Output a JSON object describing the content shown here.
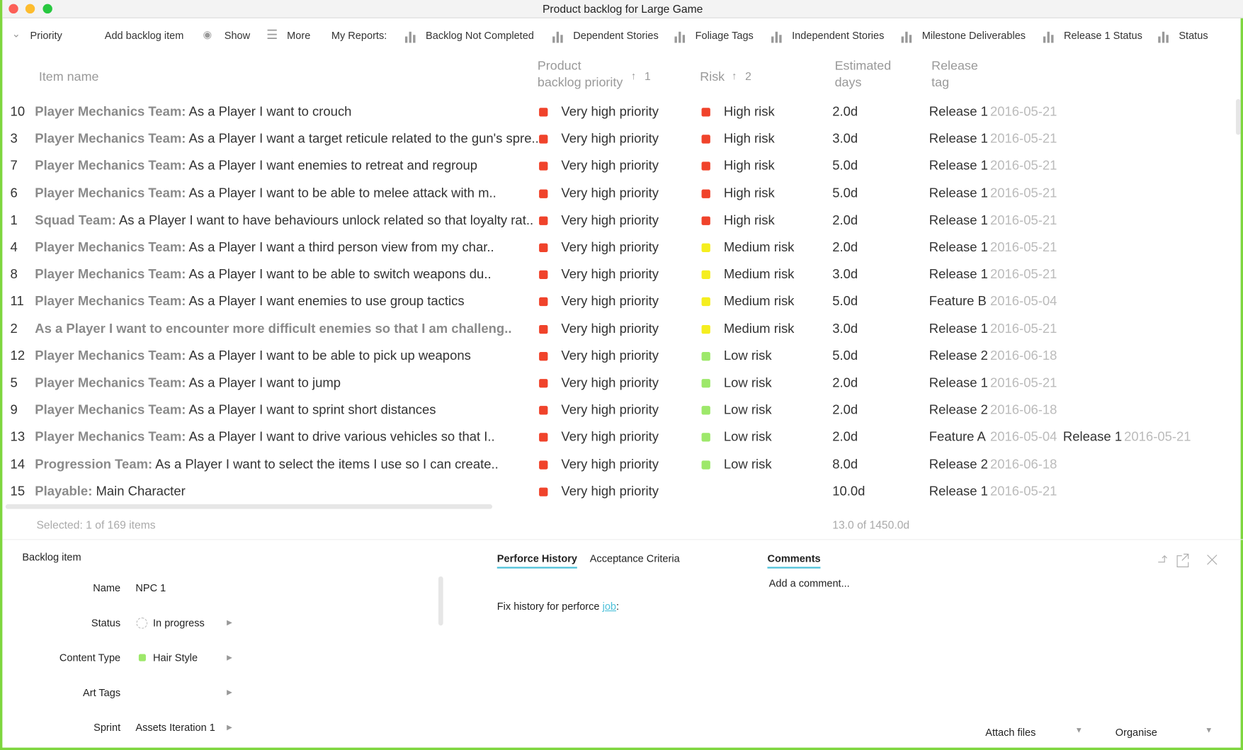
{
  "window_title": "Product backlog for Large Game",
  "toolbar": {
    "items": [
      "Priority",
      "Add backlog item",
      "Show",
      "More"
    ],
    "reports_label": "My Reports:",
    "reports": [
      "Backlog Not Completed",
      "Dependent Stories",
      "Foliage Tags",
      "Independent Stories",
      "Milestone Deliverables",
      "Release 1 Status",
      "Status"
    ]
  },
  "table": {
    "headers": [
      {
        "lines": [
          "Item name"
        ]
      },
      {
        "lines": [
          "Product",
          "backlog priority"
        ],
        "sort": "1"
      },
      {
        "lines": [
          "Risk"
        ],
        "sort": "2"
      },
      {
        "lines": [
          "Estimated",
          "days"
        ]
      },
      {
        "lines": [
          "Release",
          "tag"
        ]
      }
    ],
    "rows": [
      {
        "id": "10",
        "team": "Player Mechanics Team:",
        "text": "As a Player I want to crouch",
        "priority": "Very high priority",
        "priority_color": "#f0432b",
        "risk": "High risk",
        "risk_color": "#f0432b",
        "days": "2.0d",
        "releases": [
          {
            "tag": "Release 1",
            "date": "2016-05-21"
          }
        ]
      },
      {
        "id": "3",
        "team": "Player Mechanics Team:",
        "text": "As a Player I want a target reticule related to the gun's spre..",
        "priority": "Very high priority",
        "priority_color": "#f0432b",
        "risk": "High risk",
        "risk_color": "#f0432b",
        "days": "3.0d",
        "releases": [
          {
            "tag": "Release 1",
            "date": "2016-05-21"
          }
        ]
      },
      {
        "id": "7",
        "team": "Player Mechanics Team:",
        "text": "As a Player I want enemies to retreat and regroup",
        "priority": "Very high priority",
        "priority_color": "#f0432b",
        "risk": "High risk",
        "risk_color": "#f0432b",
        "days": "5.0d",
        "releases": [
          {
            "tag": "Release 1",
            "date": "2016-05-21"
          }
        ]
      },
      {
        "id": "6",
        "team": "Player Mechanics Team:",
        "text": "As a Player I want to be able to melee attack with m..",
        "priority": "Very high priority",
        "priority_color": "#f0432b",
        "risk": "High risk",
        "risk_color": "#f0432b",
        "days": "5.0d",
        "releases": [
          {
            "tag": "Release 1",
            "date": "2016-05-21"
          }
        ]
      },
      {
        "id": "1",
        "team": "Squad Team:",
        "text": "As a Player I want to have behaviours unlock related so that loyalty rat..",
        "priority": "Very high priority",
        "priority_color": "#f0432b",
        "risk": "High risk",
        "risk_color": "#f0432b",
        "days": "2.0d",
        "releases": [
          {
            "tag": "Release 1",
            "date": "2016-05-21"
          }
        ]
      },
      {
        "id": "4",
        "team": "Player Mechanics Team:",
        "text": "As a Player I want a third person view from my char..",
        "priority": "Very high priority",
        "priority_color": "#f0432b",
        "risk": "Medium risk",
        "risk_color": "#f5ee1f",
        "days": "2.0d",
        "releases": [
          {
            "tag": "Release 1",
            "date": "2016-05-21"
          }
        ]
      },
      {
        "id": "8",
        "team": "Player Mechanics Team:",
        "text": "As a Player I want to be able to switch weapons du..",
        "priority": "Very high priority",
        "priority_color": "#f0432b",
        "risk": "Medium risk",
        "risk_color": "#f5ee1f",
        "days": "3.0d",
        "releases": [
          {
            "tag": "Release 1",
            "date": "2016-05-21"
          }
        ]
      },
      {
        "id": "11",
        "team": "Player Mechanics Team:",
        "text": "As a Player I want enemies to use group tactics",
        "priority": "Very high priority",
        "priority_color": "#f0432b",
        "risk": "Medium risk",
        "risk_color": "#f5ee1f",
        "days": "5.0d",
        "releases": [
          {
            "tag": "Feature B",
            "date": "2016-05-04"
          }
        ]
      },
      {
        "id": "2",
        "team": "As a Player I want to encounter more difficult enemies so that I am challeng..",
        "priority": "Very high priority",
        "priority_color": "#f0432b",
        "risk": "Medium risk",
        "risk_color": "#f5ee1f",
        "days": "3.0d",
        "releases": [
          {
            "tag": "Release 1",
            "date": "2016-05-21"
          }
        ]
      },
      {
        "id": "12",
        "team": "Player Mechanics Team:",
        "text": "As a Player I want to be able to pick up weapons",
        "priority": "Very high priority",
        "priority_color": "#f0432b",
        "risk": "Low risk",
        "risk_color": "#9de86a",
        "days": "5.0d",
        "releases": [
          {
            "tag": "Release 2",
            "date": "2016-06-18"
          }
        ]
      },
      {
        "id": "5",
        "team": "Player Mechanics Team:",
        "text": "As a Player I want to jump",
        "priority": "Very high priority",
        "priority_color": "#f0432b",
        "risk": "Low risk",
        "risk_color": "#9de86a",
        "days": "2.0d",
        "releases": [
          {
            "tag": "Release 1",
            "date": "2016-05-21"
          }
        ]
      },
      {
        "id": "9",
        "team": "Player Mechanics Team:",
        "text": "As a Player I want to sprint short distances",
        "priority": "Very high priority",
        "priority_color": "#f0432b",
        "risk": "Low risk",
        "risk_color": "#9de86a",
        "days": "2.0d",
        "releases": [
          {
            "tag": "Release 2",
            "date": "2016-06-18"
          }
        ]
      },
      {
        "id": "13",
        "team": "Player Mechanics Team:",
        "text": "As a Player I want to drive various vehicles so that I..",
        "priority": "Very high priority",
        "priority_color": "#f0432b",
        "risk": "Low risk",
        "risk_color": "#9de86a",
        "days": "2.0d",
        "releases": [
          {
            "tag": "Feature A",
            "date": "2016-05-04"
          },
          {
            "tag": "Release 1",
            "date": "2016-05-21"
          }
        ]
      },
      {
        "id": "14",
        "team": "Progression Team:",
        "text": "As a Player I want to select the items I use so I can create..",
        "priority": "Very high priority",
        "priority_color": "#f0432b",
        "risk": "Low risk",
        "risk_color": "#9de86a",
        "days": "8.0d",
        "releases": [
          {
            "tag": "Release 2",
            "date": "2016-06-18"
          }
        ]
      },
      {
        "id": "15",
        "team": "Playable:",
        "text": "Main Character",
        "priority": "Very high priority",
        "priority_color": "#f0432b",
        "days": "10.0d",
        "releases": [
          {
            "tag": "Release 1",
            "date": "2016-05-21"
          }
        ]
      }
    ],
    "footer_selected": "Selected: 1 of 169 items",
    "footer_days": "13.0 of 1450.0d"
  },
  "detail": {
    "title": "Backlog item",
    "fields": [
      {
        "label": "Name",
        "value": "NPC 1"
      },
      {
        "label": "Status",
        "value": "In progress"
      },
      {
        "label": "Content Type",
        "value": "Hair Style"
      },
      {
        "label": "Art Tags"
      },
      {
        "label": "Sprint",
        "value": "Assets Iteration 1"
      }
    ],
    "tabs": [
      "Perforce History",
      "Acceptance Criteria"
    ],
    "history_text": "Fix history for perforce",
    "history_link": "job",
    "history_end": ":",
    "comments_tab": "Comments",
    "comment_placeholder": "Add a comment...",
    "attach": "Attach files",
    "organise": "Organise"
  }
}
